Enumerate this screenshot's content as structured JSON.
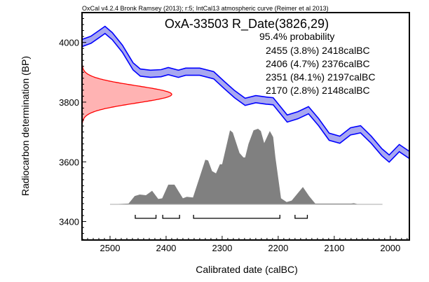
{
  "chart_data": {
    "type": "area",
    "header": "OxCal v4.2.4 Bronk Ramsey (2013); r:5; IntCal13 atmospheric curve (Reimer et al 2013)",
    "title": "OxA-33503 R_Date(3826,29)",
    "probability_label": "95.4% probability",
    "ranges_text": [
      "2455 (3.8%) 2418calBC",
      "2406 (4.7%) 2376calBC",
      "2351 (84.1%) 2197calBC",
      "2170 (2.8%) 2148calBC"
    ],
    "ranges": [
      [
        2455,
        2418
      ],
      [
        2406,
        2376
      ],
      [
        2351,
        2197
      ],
      [
        2170,
        2148
      ]
    ],
    "xlabel": "Calibrated date (calBC)",
    "ylabel": "Radiocarbon determination (BP)",
    "xlim": [
      2550,
      1966
    ],
    "ylim": [
      3338,
      4100
    ],
    "xticks": [
      2500,
      2400,
      2300,
      2200,
      2100,
      2000
    ],
    "yticks": [
      3400,
      3600,
      3800,
      4000
    ],
    "radiocarbon_date": {
      "mean": 3826,
      "sd": 29
    },
    "calibration_curve": {
      "name": "IntCal13",
      "half_width_bp": 12,
      "points": [
        [
          2550,
          3998
        ],
        [
          2534,
          4009
        ],
        [
          2521,
          4026
        ],
        [
          2509,
          4042
        ],
        [
          2496,
          4021
        ],
        [
          2478,
          3979
        ],
        [
          2459,
          3920
        ],
        [
          2446,
          3899
        ],
        [
          2428,
          3895
        ],
        [
          2409,
          3897
        ],
        [
          2396,
          3904
        ],
        [
          2378,
          3895
        ],
        [
          2365,
          3902
        ],
        [
          2340,
          3902
        ],
        [
          2315,
          3890
        ],
        [
          2296,
          3857
        ],
        [
          2278,
          3827
        ],
        [
          2259,
          3801
        ],
        [
          2240,
          3810
        ],
        [
          2221,
          3805
        ],
        [
          2209,
          3803
        ],
        [
          2184,
          3745
        ],
        [
          2165,
          3756
        ],
        [
          2146,
          3773
        ],
        [
          2128,
          3733
        ],
        [
          2109,
          3684
        ],
        [
          2090,
          3674
        ],
        [
          2071,
          3702
        ],
        [
          2053,
          3709
        ],
        [
          2034,
          3674
        ],
        [
          2015,
          3632
        ],
        [
          2002,
          3611
        ],
        [
          1984,
          3646
        ],
        [
          1966,
          3623
        ]
      ]
    },
    "posterior": {
      "points": [
        [
          2500,
          0
        ],
        [
          2467,
          0.01
        ],
        [
          2456,
          0.11
        ],
        [
          2447,
          0.13
        ],
        [
          2436,
          0.12
        ],
        [
          2425,
          0.18
        ],
        [
          2414,
          0.07
        ],
        [
          2407,
          0.08
        ],
        [
          2396,
          0.26
        ],
        [
          2385,
          0.26
        ],
        [
          2370,
          0.08
        ],
        [
          2363,
          0.1
        ],
        [
          2352,
          0.09
        ],
        [
          2330,
          0.59
        ],
        [
          2325,
          0.58
        ],
        [
          2318,
          0.44
        ],
        [
          2311,
          0.41
        ],
        [
          2304,
          0.53
        ],
        [
          2300,
          0.53
        ],
        [
          2286,
          0.98
        ],
        [
          2281,
          0.95
        ],
        [
          2269,
          0.68
        ],
        [
          2262,
          0.62
        ],
        [
          2259,
          0.62
        ],
        [
          2253,
          0.8
        ],
        [
          2244,
          0.98
        ],
        [
          2236,
          1.0
        ],
        [
          2231,
          0.97
        ],
        [
          2225,
          0.81
        ],
        [
          2215,
          0.97
        ],
        [
          2209,
          0.89
        ],
        [
          2205,
          0.62
        ],
        [
          2195,
          0.08
        ],
        [
          2185,
          0.03
        ],
        [
          2176,
          0.05
        ],
        [
          2156,
          0.23
        ],
        [
          2145,
          0.11
        ],
        [
          2134,
          0.01
        ],
        [
          2070,
          0.01
        ],
        [
          2065,
          0.015
        ],
        [
          2059,
          0.005
        ],
        [
          2014,
          0
        ]
      ]
    },
    "colors": {
      "curve": "#0000ff",
      "curve_fill": "#a8a8f0",
      "date": "#ff0000",
      "date_fill": "#ffb3b3",
      "posterior": "#808080"
    }
  }
}
